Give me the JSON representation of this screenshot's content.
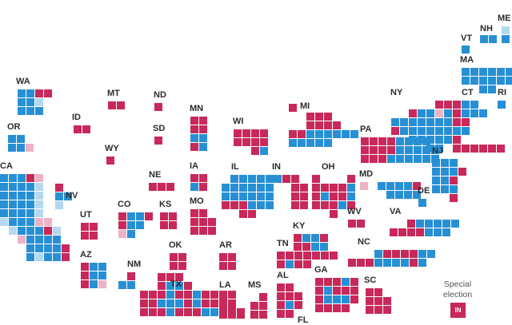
{
  "colors": {
    "dem": "#2790d5",
    "dem_lean": "#b4d8ef",
    "rep": "#c8285a",
    "rep_lean": "#ecb3c6"
  },
  "states": [
    {
      "abbr": "ME"
    },
    {
      "abbr": "NH"
    },
    {
      "abbr": "VT"
    },
    {
      "abbr": "MA"
    },
    {
      "abbr": "RI"
    },
    {
      "abbr": "CT"
    },
    {
      "abbr": "NY"
    },
    {
      "abbr": "NJ"
    },
    {
      "abbr": "PA"
    },
    {
      "abbr": "DE"
    },
    {
      "abbr": "MD"
    },
    {
      "abbr": "VA"
    },
    {
      "abbr": "WV"
    },
    {
      "abbr": "NC"
    },
    {
      "abbr": "SC"
    },
    {
      "abbr": "GA"
    },
    {
      "abbr": "FL"
    },
    {
      "abbr": "AL"
    },
    {
      "abbr": "MS"
    },
    {
      "abbr": "TN"
    },
    {
      "abbr": "KY"
    },
    {
      "abbr": "OH"
    },
    {
      "abbr": "MI"
    },
    {
      "abbr": "IN"
    },
    {
      "abbr": "IL"
    },
    {
      "abbr": "WI"
    },
    {
      "abbr": "MN"
    },
    {
      "abbr": "IA"
    },
    {
      "abbr": "MO"
    },
    {
      "abbr": "AR"
    },
    {
      "abbr": "LA"
    },
    {
      "abbr": "TX"
    },
    {
      "abbr": "OK"
    },
    {
      "abbr": "KS"
    },
    {
      "abbr": "NE"
    },
    {
      "abbr": "SD"
    },
    {
      "abbr": "ND"
    },
    {
      "abbr": "MT"
    },
    {
      "abbr": "WY"
    },
    {
      "abbr": "CO"
    },
    {
      "abbr": "NM"
    },
    {
      "abbr": "AZ"
    },
    {
      "abbr": "UT"
    },
    {
      "abbr": "ID"
    },
    {
      "abbr": "WA"
    },
    {
      "abbr": "OR"
    },
    {
      "abbr": "CA"
    },
    {
      "abbr": "NV"
    }
  ],
  "legend": {
    "title": "Special election",
    "box_label": "IN"
  }
}
